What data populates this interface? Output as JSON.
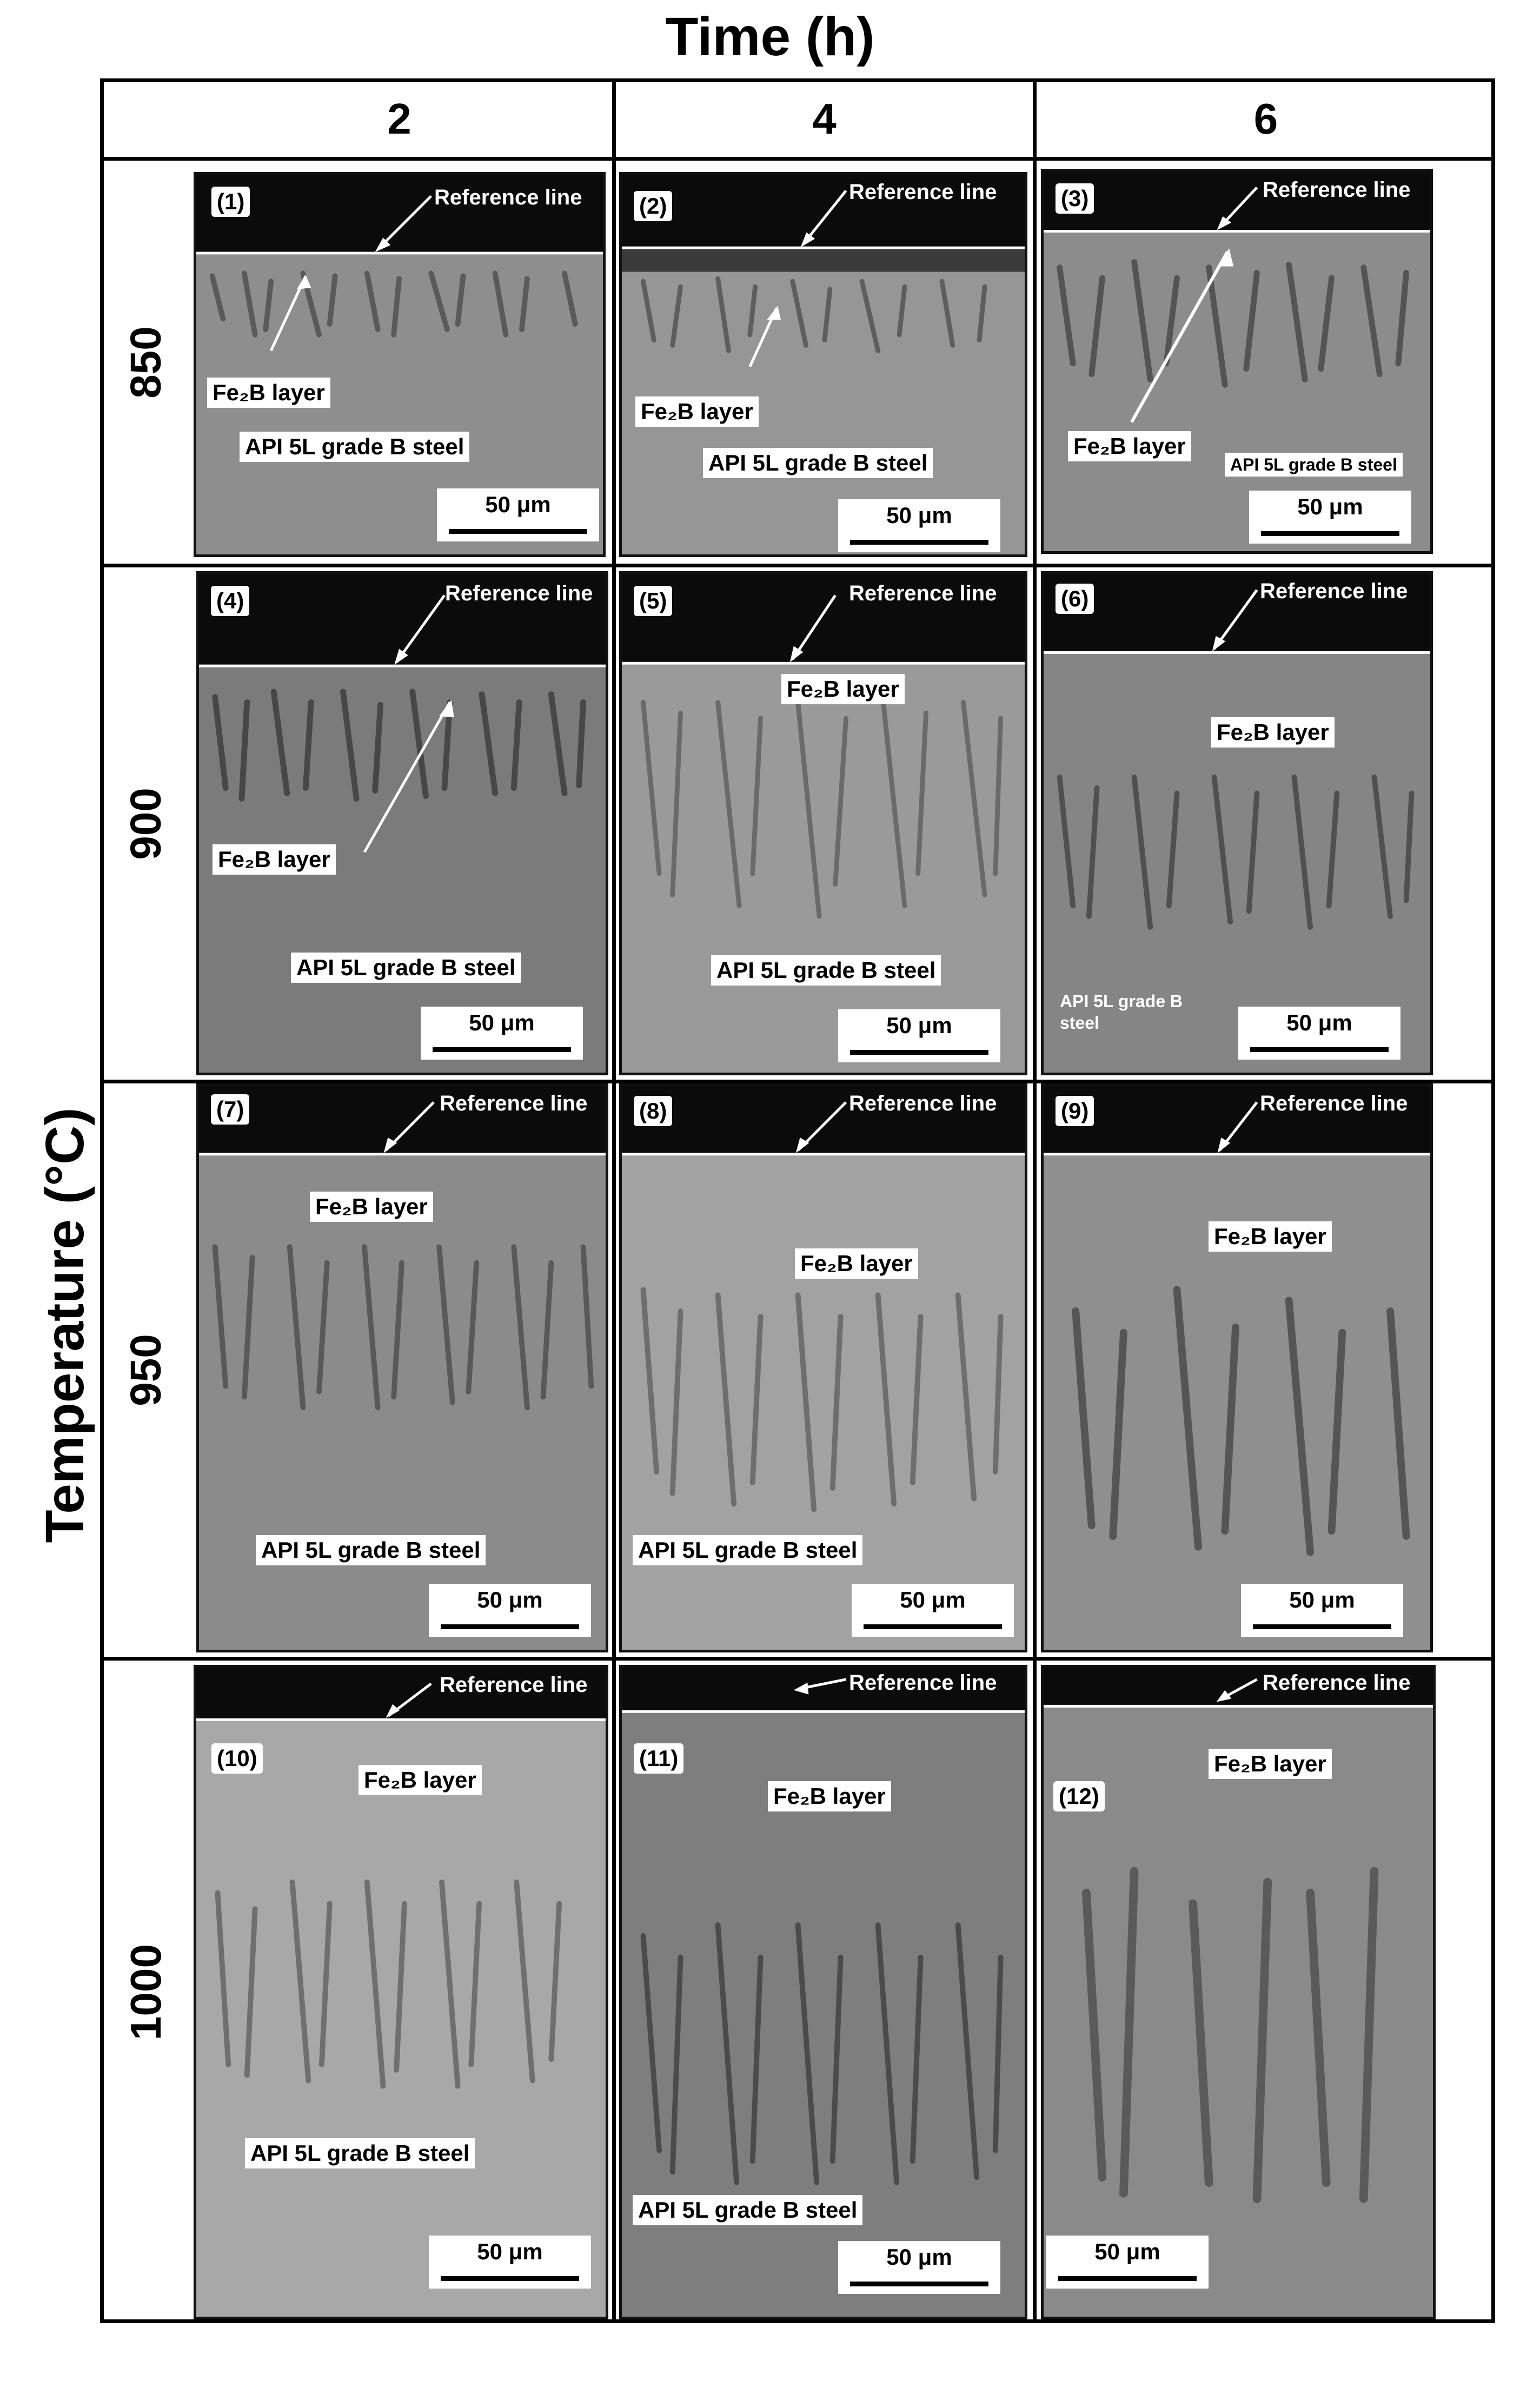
{
  "figure": {
    "x_title": "Time (h)",
    "y_title": "Temperature (°C)",
    "time_columns": [
      "2",
      "4",
      "6"
    ],
    "temperature_rows": [
      "850",
      "900",
      "950",
      "1000"
    ]
  },
  "labels": {
    "reference": "Reference line",
    "layer": "Fe₂B layer",
    "substrate": "API 5L grade B steel",
    "substrate_wrapped": "API 5L grade B steel",
    "scale": "50 μm"
  },
  "panels": [
    {
      "id": "(1)"
    },
    {
      "id": "(2)"
    },
    {
      "id": "(3)"
    },
    {
      "id": "(4)"
    },
    {
      "id": "(5)"
    },
    {
      "id": "(6)"
    },
    {
      "id": "(7)"
    },
    {
      "id": "(8)"
    },
    {
      "id": "(9)"
    },
    {
      "id": "(10)"
    },
    {
      "id": "(11)"
    },
    {
      "id": "(12)"
    }
  ]
}
